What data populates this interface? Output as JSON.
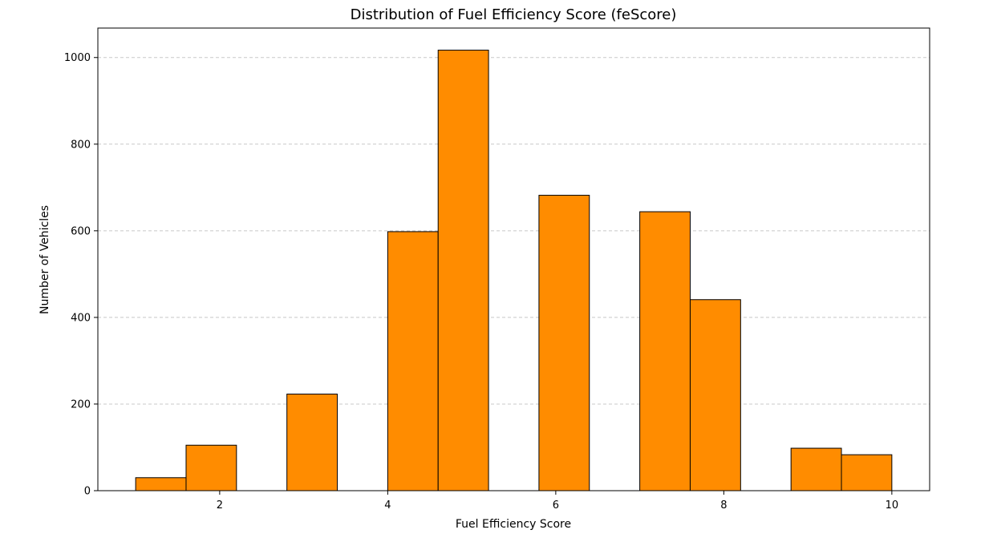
{
  "chart_data": {
    "type": "bar",
    "title": "Distribution of Fuel Efficiency Score (feScore)",
    "xlabel": "Fuel Efficiency Score",
    "ylabel": "Number of Vehicles",
    "xlim": [
      0.55,
      10.45
    ],
    "ylim": [
      0,
      1068
    ],
    "x_ticks": [
      2,
      4,
      6,
      8,
      10
    ],
    "y_ticks": [
      0,
      200,
      400,
      600,
      800,
      1000
    ],
    "grid": "y, dashed",
    "bins": [
      {
        "x0": 1.0,
        "x1": 1.6,
        "count": 30
      },
      {
        "x0": 1.6,
        "x1": 2.2,
        "count": 105
      },
      {
        "x0": 2.2,
        "x1": 2.8,
        "count": 0
      },
      {
        "x0": 2.8,
        "x1": 3.4,
        "count": 223
      },
      {
        "x0": 3.4,
        "x1": 4.0,
        "count": 0
      },
      {
        "x0": 4.0,
        "x1": 4.6,
        "count": 598
      },
      {
        "x0": 4.6,
        "x1": 5.2,
        "count": 1017
      },
      {
        "x0": 5.2,
        "x1": 5.8,
        "count": 0
      },
      {
        "x0": 5.8,
        "x1": 6.4,
        "count": 682
      },
      {
        "x0": 6.4,
        "x1": 7.0,
        "count": 0
      },
      {
        "x0": 7.0,
        "x1": 7.6,
        "count": 644
      },
      {
        "x0": 7.6,
        "x1": 8.2,
        "count": 441
      },
      {
        "x0": 8.2,
        "x1": 8.8,
        "count": 0
      },
      {
        "x0": 8.8,
        "x1": 9.4,
        "count": 98
      },
      {
        "x0": 9.4,
        "x1": 10.0,
        "count": 83
      }
    ],
    "colors": {
      "bar_fill": "#ff8c00",
      "bar_edge": "#000000",
      "grid": "#c8c8c8",
      "axis": "#000000"
    }
  }
}
